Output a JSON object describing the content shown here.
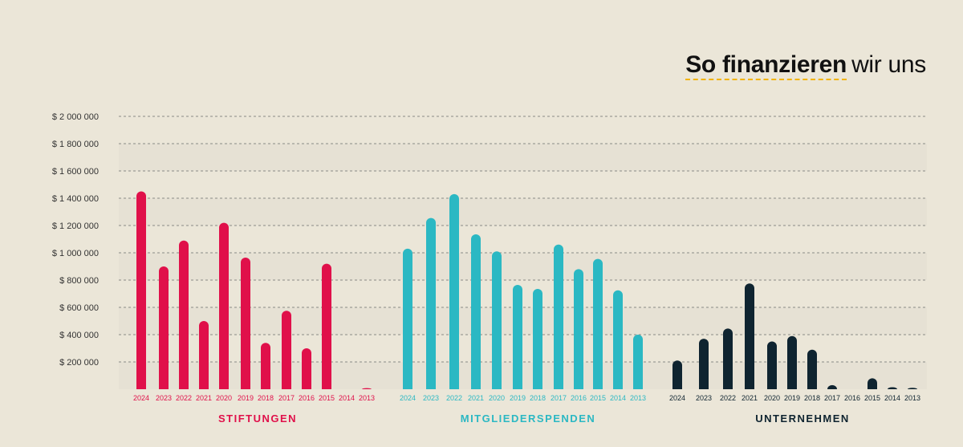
{
  "chart_data": {
    "type": "bar",
    "title_bold": "So finanzieren",
    "title_light": "wir uns",
    "ylim": [
      0,
      2000000
    ],
    "y_ticks": [
      {
        "value": 200000,
        "label": "$ 200 000"
      },
      {
        "value": 400000,
        "label": "$ 400 000"
      },
      {
        "value": 600000,
        "label": "$ 600 000"
      },
      {
        "value": 800000,
        "label": "$ 800 000"
      },
      {
        "value": 1000000,
        "label": "$ 1 000 000"
      },
      {
        "value": 1200000,
        "label": "$ 1 200 000"
      },
      {
        "value": 1400000,
        "label": "$ 1 400 000"
      },
      {
        "value": 1600000,
        "label": "$ 1 600 000"
      },
      {
        "value": 1800000,
        "label": "$ 1 800 000"
      },
      {
        "value": 2000000,
        "label": "$ 2 000 000"
      }
    ],
    "series": [
      {
        "name": "STIFTUNGEN",
        "color": "#e0104a",
        "categories": [
          "2024",
          "2023",
          "2022",
          "2021",
          "2020",
          "2019",
          "2018",
          "2017",
          "2016",
          "2015",
          "2014",
          "2013"
        ],
        "values": [
          1450000,
          900000,
          1090000,
          500000,
          1220000,
          965000,
          340000,
          575000,
          300000,
          920000,
          0,
          8000
        ]
      },
      {
        "name": "MITGLIEDERSPENDEN",
        "color": "#2bb8c3",
        "categories": [
          "2024",
          "2023",
          "2022",
          "2021",
          "2020",
          "2019",
          "2018",
          "2017",
          "2016",
          "2015",
          "2014",
          "2013"
        ],
        "values": [
          1030000,
          1255000,
          1430000,
          1135000,
          1010000,
          765000,
          735000,
          1060000,
          880000,
          955000,
          725000,
          400000
        ]
      },
      {
        "name": "UNTERNEHMEN",
        "color": "#0f2430",
        "categories": [
          "2024",
          "2023",
          "2022",
          "2021",
          "2020",
          "2019",
          "2018",
          "2017",
          "2016",
          "2015",
          "2014",
          "2013"
        ],
        "values": [
          210000,
          370000,
          445000,
          775000,
          350000,
          390000,
          290000,
          30000,
          0,
          80000,
          15000,
          10000
        ]
      }
    ]
  }
}
